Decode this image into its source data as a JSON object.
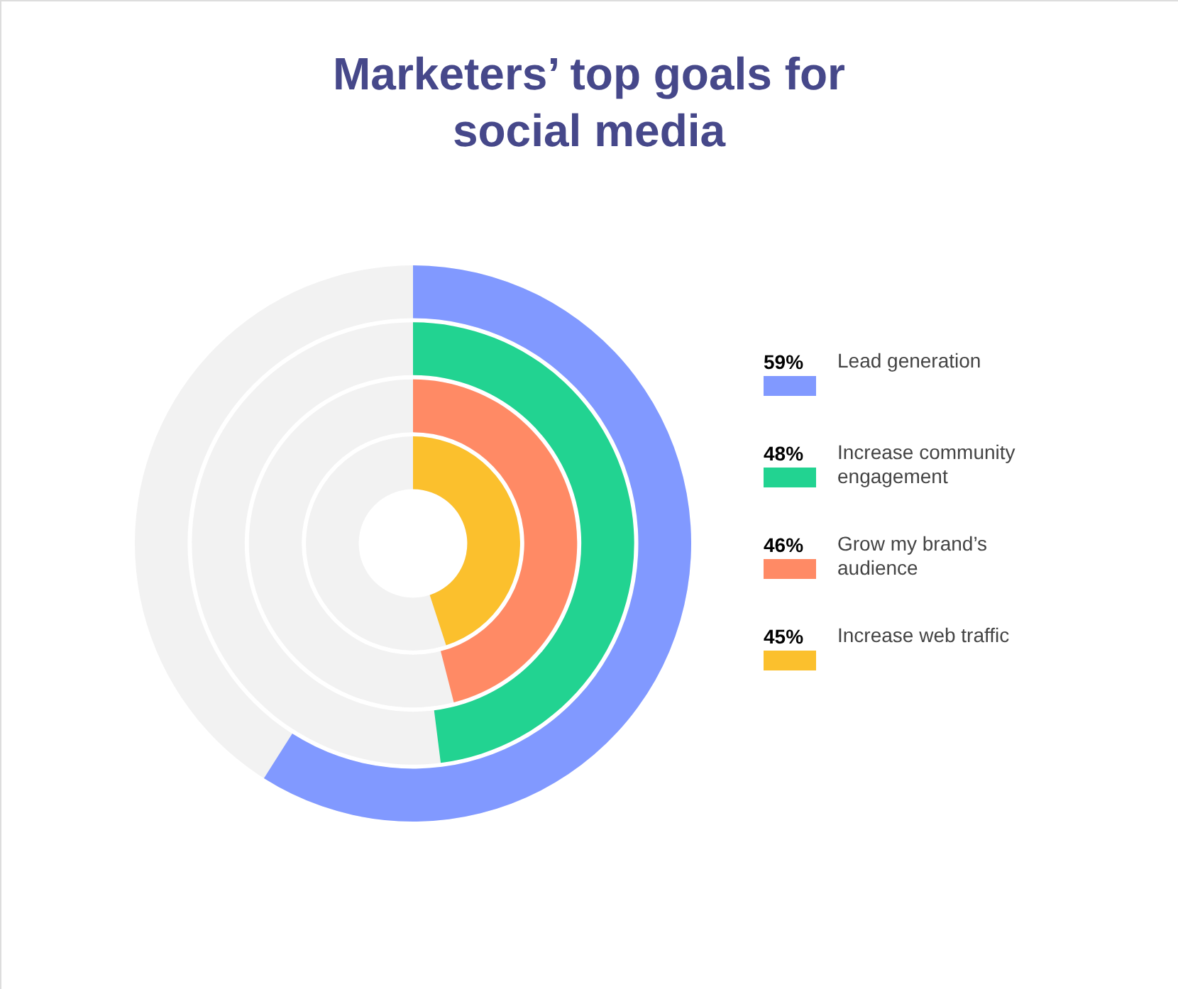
{
  "chart_data": {
    "type": "other",
    "title": "Marketers’ top goals for social media",
    "categories": [
      "Lead generation",
      "Increase community engagement",
      "Grow my brand’s audience",
      "Increase web traffic"
    ],
    "values": [
      59,
      48,
      46,
      45
    ],
    "value_labels": [
      "59%",
      "48%",
      "46%",
      "45%"
    ],
    "colors": [
      "#8199ff",
      "#22d391",
      "#ff8a65",
      "#fbc02d"
    ]
  }
}
